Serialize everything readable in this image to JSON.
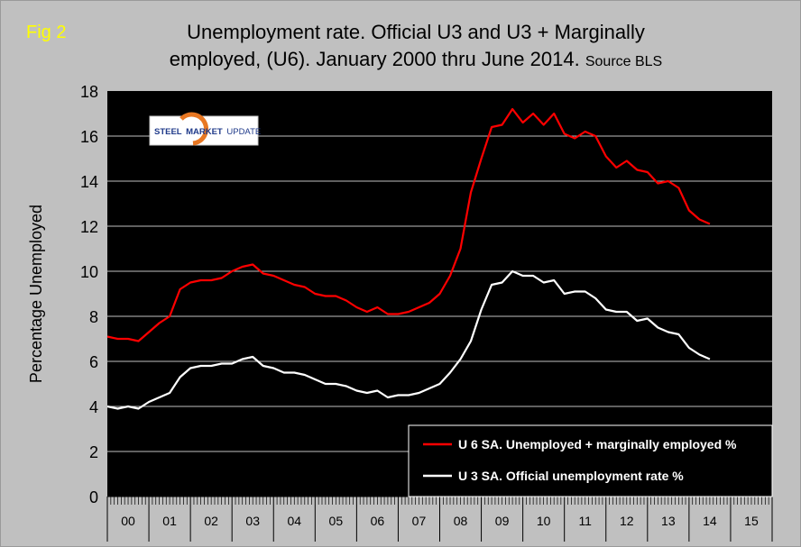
{
  "header": {
    "fig_label": "Fig 2",
    "title_line1": "Unemployment rate. Official U3 and U3 + Marginally",
    "title_line2": "employed, (U6). January 2000 thru June 2014.",
    "source": "Source BLS"
  },
  "logo": {
    "word1": "STEEL",
    "word2": "MARKET",
    "word3": "UPDATE"
  },
  "colors": {
    "background": "#c0c0c0",
    "plot": "#000000",
    "u6": "#ff0000",
    "u3": "#ffffff"
  },
  "chart_data": {
    "type": "line",
    "ylabel": "Percentage Unemployed",
    "ylim": [
      0,
      18
    ],
    "yticks": [
      0,
      2,
      4,
      6,
      8,
      10,
      12,
      14,
      16,
      18
    ],
    "xlim": [
      2000.0,
      2016.0
    ],
    "year_labels": [
      "00",
      "01",
      "02",
      "03",
      "04",
      "05",
      "06",
      "07",
      "08",
      "09",
      "10",
      "11",
      "12",
      "13",
      "14",
      "15"
    ],
    "grid": "horizontal",
    "legend_position": "bottom-right",
    "series": [
      {
        "name": "U 6 SA. Unemployed + marginally employed %",
        "color": "#ff0000",
        "points": [
          [
            2000.0,
            7.1
          ],
          [
            2000.25,
            7.0
          ],
          [
            2000.5,
            7.0
          ],
          [
            2000.75,
            6.9
          ],
          [
            2001.0,
            7.3
          ],
          [
            2001.25,
            7.7
          ],
          [
            2001.5,
            8.0
          ],
          [
            2001.75,
            9.2
          ],
          [
            2002.0,
            9.5
          ],
          [
            2002.25,
            9.6
          ],
          [
            2002.5,
            9.6
          ],
          [
            2002.75,
            9.7
          ],
          [
            2003.0,
            10.0
          ],
          [
            2003.25,
            10.2
          ],
          [
            2003.5,
            10.3
          ],
          [
            2003.75,
            9.9
          ],
          [
            2004.0,
            9.8
          ],
          [
            2004.25,
            9.6
          ],
          [
            2004.5,
            9.4
          ],
          [
            2004.75,
            9.3
          ],
          [
            2005.0,
            9.0
          ],
          [
            2005.25,
            8.9
          ],
          [
            2005.5,
            8.9
          ],
          [
            2005.75,
            8.7
          ],
          [
            2006.0,
            8.4
          ],
          [
            2006.25,
            8.2
          ],
          [
            2006.5,
            8.4
          ],
          [
            2006.75,
            8.1
          ],
          [
            2007.0,
            8.1
          ],
          [
            2007.25,
            8.2
          ],
          [
            2007.5,
            8.4
          ],
          [
            2007.75,
            8.6
          ],
          [
            2008.0,
            9.0
          ],
          [
            2008.25,
            9.8
          ],
          [
            2008.5,
            11.0
          ],
          [
            2008.75,
            13.5
          ],
          [
            2009.0,
            15.0
          ],
          [
            2009.25,
            16.4
          ],
          [
            2009.5,
            16.5
          ],
          [
            2009.75,
            17.2
          ],
          [
            2010.0,
            16.6
          ],
          [
            2010.25,
            17.0
          ],
          [
            2010.5,
            16.5
          ],
          [
            2010.75,
            17.0
          ],
          [
            2011.0,
            16.1
          ],
          [
            2011.25,
            15.9
          ],
          [
            2011.5,
            16.2
          ],
          [
            2011.75,
            16.0
          ],
          [
            2012.0,
            15.1
          ],
          [
            2012.25,
            14.6
          ],
          [
            2012.5,
            14.9
          ],
          [
            2012.75,
            14.5
          ],
          [
            2013.0,
            14.4
          ],
          [
            2013.25,
            13.9
          ],
          [
            2013.5,
            14.0
          ],
          [
            2013.75,
            13.7
          ],
          [
            2014.0,
            12.7
          ],
          [
            2014.25,
            12.3
          ],
          [
            2014.5,
            12.1
          ]
        ]
      },
      {
        "name": "U 3 SA. Official unemployment rate %",
        "color": "#ffffff",
        "points": [
          [
            2000.0,
            4.0
          ],
          [
            2000.25,
            3.9
          ],
          [
            2000.5,
            4.0
          ],
          [
            2000.75,
            3.9
          ],
          [
            2001.0,
            4.2
          ],
          [
            2001.25,
            4.4
          ],
          [
            2001.5,
            4.6
          ],
          [
            2001.75,
            5.3
          ],
          [
            2002.0,
            5.7
          ],
          [
            2002.25,
            5.8
          ],
          [
            2002.5,
            5.8
          ],
          [
            2002.75,
            5.9
          ],
          [
            2003.0,
            5.9
          ],
          [
            2003.25,
            6.1
          ],
          [
            2003.5,
            6.2
          ],
          [
            2003.75,
            5.8
          ],
          [
            2004.0,
            5.7
          ],
          [
            2004.25,
            5.5
          ],
          [
            2004.5,
            5.5
          ],
          [
            2004.75,
            5.4
          ],
          [
            2005.0,
            5.2
          ],
          [
            2005.25,
            5.0
          ],
          [
            2005.5,
            5.0
          ],
          [
            2005.75,
            4.9
          ],
          [
            2006.0,
            4.7
          ],
          [
            2006.25,
            4.6
          ],
          [
            2006.5,
            4.7
          ],
          [
            2006.75,
            4.4
          ],
          [
            2007.0,
            4.5
          ],
          [
            2007.25,
            4.5
          ],
          [
            2007.5,
            4.6
          ],
          [
            2007.75,
            4.8
          ],
          [
            2008.0,
            5.0
          ],
          [
            2008.25,
            5.5
          ],
          [
            2008.5,
            6.1
          ],
          [
            2008.75,
            6.9
          ],
          [
            2009.0,
            8.3
          ],
          [
            2009.25,
            9.4
          ],
          [
            2009.5,
            9.5
          ],
          [
            2009.75,
            10.0
          ],
          [
            2010.0,
            9.8
          ],
          [
            2010.25,
            9.8
          ],
          [
            2010.5,
            9.5
          ],
          [
            2010.75,
            9.6
          ],
          [
            2011.0,
            9.0
          ],
          [
            2011.25,
            9.1
          ],
          [
            2011.5,
            9.1
          ],
          [
            2011.75,
            8.8
          ],
          [
            2012.0,
            8.3
          ],
          [
            2012.25,
            8.2
          ],
          [
            2012.5,
            8.2
          ],
          [
            2012.75,
            7.8
          ],
          [
            2013.0,
            7.9
          ],
          [
            2013.25,
            7.5
          ],
          [
            2013.5,
            7.3
          ],
          [
            2013.75,
            7.2
          ],
          [
            2014.0,
            6.6
          ],
          [
            2014.25,
            6.3
          ],
          [
            2014.5,
            6.1
          ]
        ]
      }
    ]
  }
}
